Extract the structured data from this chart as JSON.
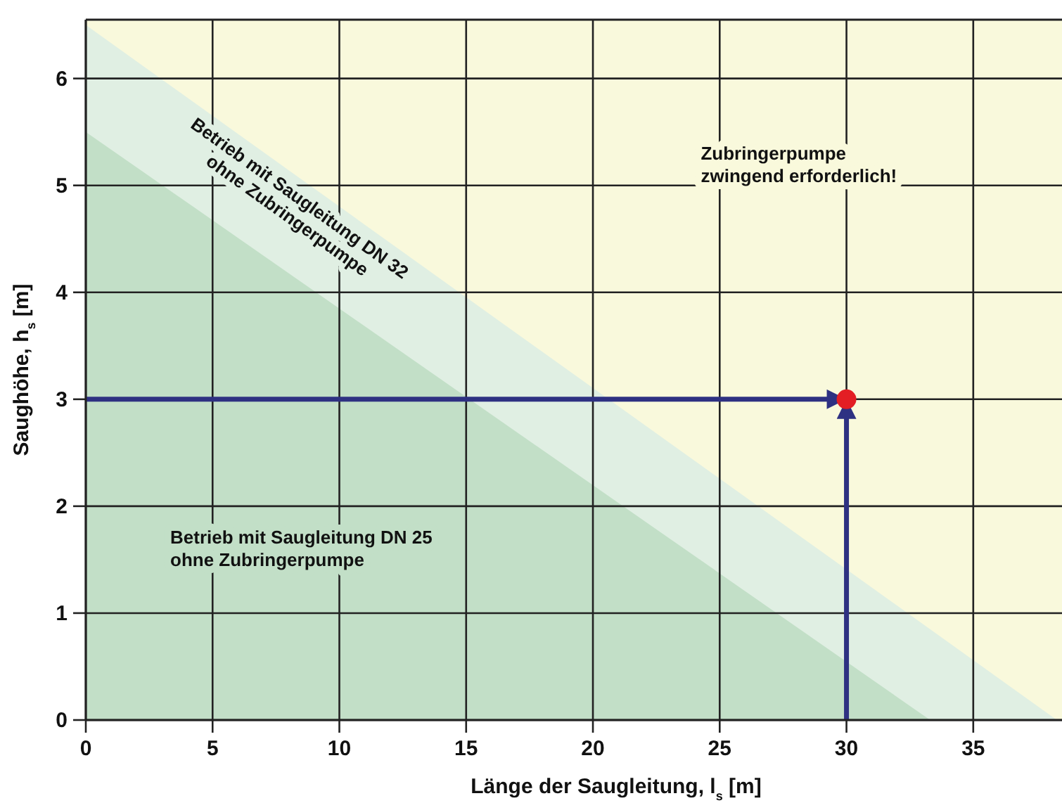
{
  "chart_data": {
    "type": "area",
    "xlabel": "Länge der Saugleitung, l$_{s}$ [m]",
    "ylabel": "Saughöhe, h$_{s}$ [m]",
    "xlim": [
      0,
      38.5
    ],
    "ylim": [
      0,
      6.55
    ],
    "xticks": [
      0,
      5,
      10,
      15,
      20,
      25,
      30,
      35
    ],
    "yticks": [
      0,
      1,
      2,
      3,
      4,
      5,
      6
    ],
    "grid": true,
    "legend": false,
    "bands": [
      {
        "axis": "y",
        "from": 0,
        "to": 6.55,
        "label": "Zubringerpumpe zwingend erforderlich!",
        "color": "#f9f9dc"
      }
    ],
    "series": [
      {
        "name": "Betrieb mit Saugleitung DN 32 ohne Zubringerpumpe",
        "color": "#e0efe3",
        "x": [
          0,
          38.3
        ],
        "values": [
          6.5,
          0
        ]
      },
      {
        "name": "Betrieb mit Saugleitung DN 25 ohne Zubringerpumpe",
        "color": "#c2dfc7",
        "x": [
          0,
          33.3
        ],
        "values": [
          5.5,
          0
        ]
      },
      {
        "type": "line",
        "color": "#2e3182",
        "x": [
          0,
          30
        ],
        "values": [
          3,
          3
        ],
        "marker": "none"
      },
      {
        "type": "line",
        "color": "#2e3182",
        "x": [
          30,
          30
        ],
        "values": [
          0,
          3
        ],
        "marker": "none"
      },
      {
        "type": "scatter",
        "color": "#e31e24",
        "x": [
          30
        ],
        "values": [
          3
        ],
        "marker": "circle"
      }
    ]
  }
}
